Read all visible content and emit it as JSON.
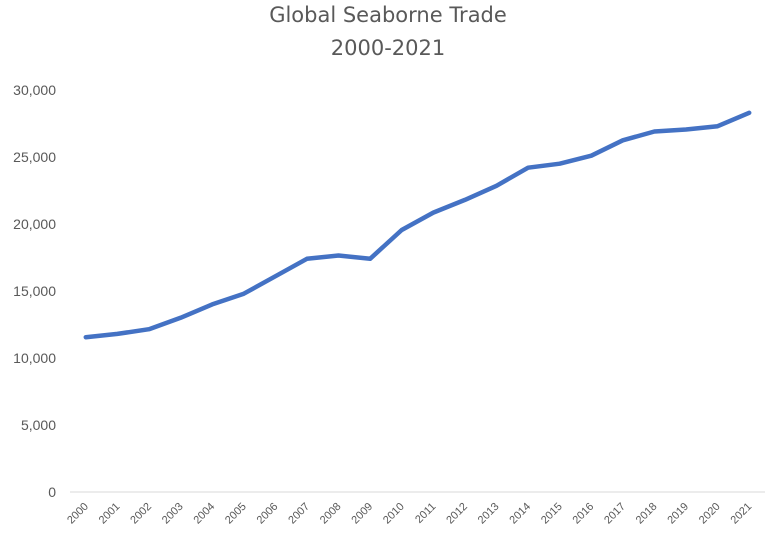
{
  "chart_data": {
    "type": "line",
    "title": "Global Seaborne Trade",
    "subtitle": "2000-2021",
    "xlabel": "",
    "ylabel": "",
    "categories": [
      "2000",
      "2001",
      "2002",
      "2003",
      "2004",
      "2005",
      "2006",
      "2007",
      "2008",
      "2009",
      "2010",
      "2011",
      "2012",
      "2013",
      "2014",
      "2015",
      "2016",
      "2017",
      "2018",
      "2019",
      "2020",
      "2021"
    ],
    "series": [
      {
        "values": [
          11550,
          11800,
          12150,
          13000,
          14000,
          14800,
          16100,
          17400,
          17650,
          17400,
          19550,
          20850,
          21800,
          22850,
          24200,
          24500,
          25100,
          26250,
          26900,
          27050,
          27300,
          28300
        ]
      }
    ],
    "ylim": [
      0,
      30000
    ],
    "yticks": [
      "0",
      "5,000",
      "10,000",
      "15,000",
      "20,000",
      "25,000",
      "30,000"
    ],
    "ytick_values": [
      0,
      5000,
      10000,
      15000,
      20000,
      25000,
      30000
    ],
    "grid": false,
    "legend": "none",
    "colors": {
      "line": "#4472C4",
      "text": "#595959",
      "axis": "#D9D9D9"
    }
  }
}
